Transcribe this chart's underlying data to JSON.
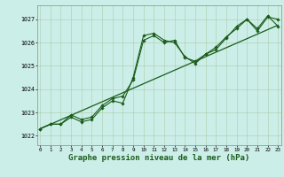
{
  "bg_color": "#cceee8",
  "grid_color": "#aaccaa",
  "line_color": "#1a5c1a",
  "marker_color": "#1a5c1a",
  "title": "Graphe pression niveau de la mer (hPa)",
  "title_fontsize": 6.5,
  "ylabel_ticks": [
    1022,
    1023,
    1024,
    1025,
    1026,
    1027
  ],
  "xlim": [
    -0.3,
    23.3
  ],
  "ylim": [
    1021.6,
    1027.6
  ],
  "xticks": [
    0,
    1,
    2,
    3,
    4,
    5,
    6,
    7,
    8,
    9,
    10,
    11,
    12,
    13,
    14,
    15,
    16,
    17,
    18,
    19,
    20,
    21,
    22,
    23
  ],
  "line1_x": [
    0,
    1,
    2,
    3,
    4,
    5,
    6,
    7,
    8,
    9,
    10,
    11,
    12,
    13,
    14,
    15,
    16,
    17,
    18,
    19,
    20,
    21,
    22,
    23
  ],
  "line1_y": [
    1022.3,
    1022.5,
    1022.5,
    1022.8,
    1022.6,
    1022.7,
    1023.2,
    1023.5,
    1023.4,
    1024.5,
    1026.3,
    1026.4,
    1026.1,
    1026.0,
    1025.4,
    1025.1,
    1025.5,
    1025.7,
    1026.2,
    1026.7,
    1027.0,
    1026.5,
    1027.1,
    1027.0
  ],
  "line2_x": [
    0,
    1,
    2,
    3,
    4,
    5,
    6,
    7,
    8,
    9,
    10,
    11,
    12,
    13,
    14,
    15,
    16,
    17,
    18,
    19,
    20,
    21,
    22,
    23
  ],
  "line2_y": [
    1022.3,
    1022.5,
    1022.5,
    1022.9,
    1022.7,
    1022.8,
    1023.3,
    1023.6,
    1023.7,
    1024.4,
    1026.1,
    1026.3,
    1026.0,
    1026.1,
    1025.35,
    1025.2,
    1025.5,
    1025.8,
    1026.25,
    1026.6,
    1027.0,
    1026.6,
    1027.15,
    1026.7
  ],
  "trend_x": [
    0,
    23
  ],
  "trend_y": [
    1022.3,
    1026.75
  ]
}
